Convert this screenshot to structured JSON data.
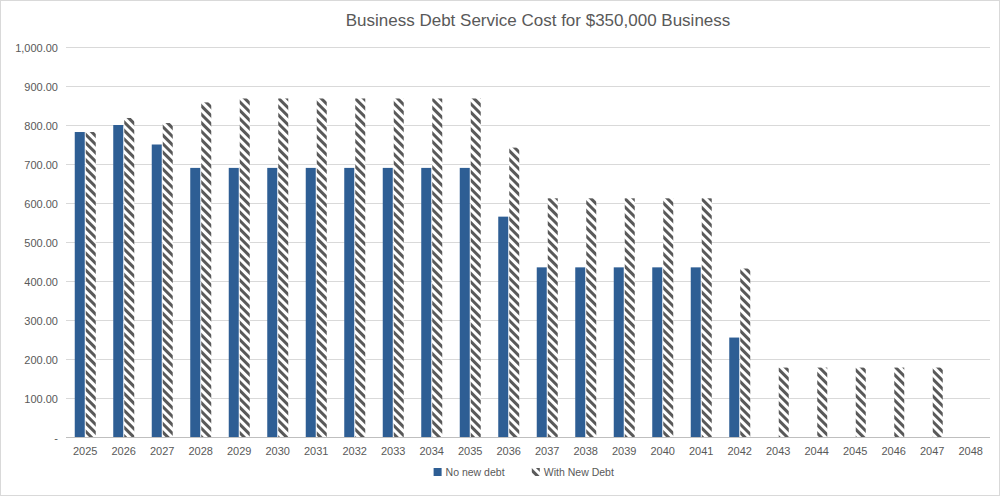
{
  "chart_data": {
    "type": "bar",
    "title": "Business Debt Service Cost for $350,000 Business",
    "categories": [
      "2025",
      "2026",
      "2027",
      "2028",
      "2029",
      "2030",
      "2031",
      "2032",
      "2033",
      "2034",
      "2035",
      "2036",
      "2037",
      "2038",
      "2039",
      "2040",
      "2041",
      "2042",
      "2043",
      "2044",
      "2045",
      "2046",
      "2047",
      "2048"
    ],
    "series": [
      {
        "name": "No new debt",
        "color": "#2e5e94",
        "values": [
          782,
          800,
          750,
          690,
          690,
          690,
          690,
          690,
          690,
          690,
          690,
          565,
          435,
          435,
          435,
          435,
          435,
          255,
          null,
          null,
          null,
          null,
          null,
          null
        ]
      },
      {
        "name": "With New Debt",
        "color": "#595959",
        "values": [
          782,
          818,
          805,
          858,
          868,
          868,
          868,
          868,
          868,
          868,
          868,
          742,
          612,
          612,
          612,
          612,
          612,
          432,
          178,
          178,
          178,
          178,
          178,
          null
        ]
      }
    ],
    "ylim": [
      0,
      1000
    ],
    "yticks": [
      {
        "value": 0,
        "label": "-"
      },
      {
        "value": 100,
        "label": "100.00"
      },
      {
        "value": 200,
        "label": "200.00"
      },
      {
        "value": 300,
        "label": "300.00"
      },
      {
        "value": 400,
        "label": "400.00"
      },
      {
        "value": 500,
        "label": "500.00"
      },
      {
        "value": 600,
        "label": "600.00"
      },
      {
        "value": 700,
        "label": "700.00"
      },
      {
        "value": 800,
        "label": "800.00"
      },
      {
        "value": 900,
        "label": "900.00"
      },
      {
        "value": 1000,
        "label": "1,000.00"
      }
    ],
    "grid": true,
    "legend": "bottom"
  }
}
